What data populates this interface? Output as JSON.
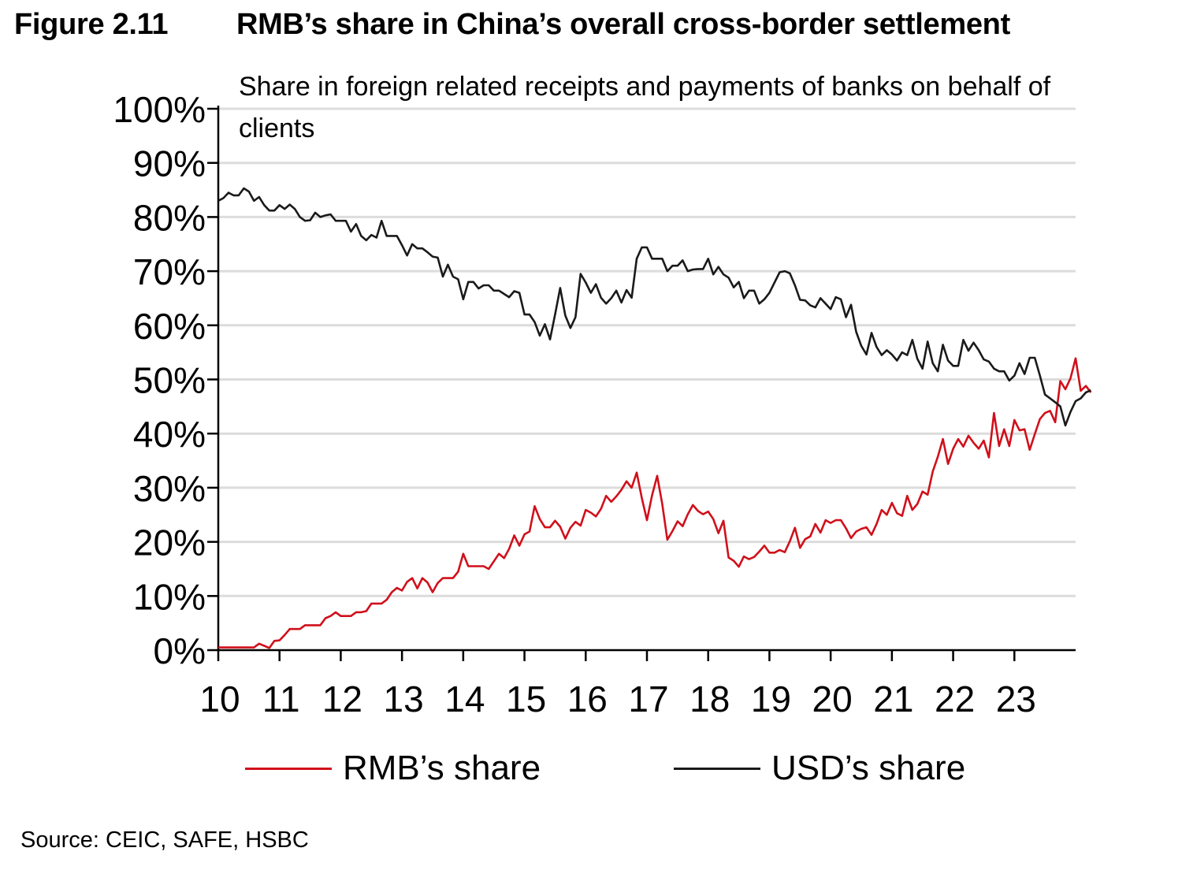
{
  "figure": {
    "number": "Figure 2.11",
    "title": "RMB’s share in China’s overall cross-border settlement",
    "subtitle": "Share in foreign related receipts and payments of banks on behalf of clients",
    "source": "Source: CEIC, SAFE, HSBC"
  },
  "chart_data": {
    "type": "line",
    "title": "RMB’s share in China’s overall cross-border settlement",
    "subtitle": "Share in foreign related receipts and payments of banks on behalf of clients",
    "xlabel": "",
    "ylabel": "",
    "x_start": "2010-01",
    "x_frequency": "monthly",
    "x_range": [
      2010,
      2024
    ],
    "xticks": [
      "10",
      "11",
      "12",
      "13",
      "14",
      "15",
      "16",
      "17",
      "18",
      "19",
      "20",
      "21",
      "22",
      "23"
    ],
    "ylim": [
      0,
      100
    ],
    "yticks": [
      "0%",
      "10%",
      "20%",
      "30%",
      "40%",
      "50%",
      "60%",
      "70%",
      "80%",
      "90%",
      "100%"
    ],
    "grid": "horizontal",
    "legend_position": "bottom",
    "series": [
      {
        "name": "RMB’s share",
        "color": "#d0101b",
        "values": [
          0.5,
          0.5,
          0.5,
          0.5,
          0.5,
          0.5,
          0.5,
          0.5,
          1.2,
          0.8,
          0.4,
          1.7,
          1.8,
          2.8,
          3.9,
          3.9,
          3.9,
          4.6,
          4.6,
          4.6,
          4.6,
          5.9,
          6.3,
          7.0,
          6.3,
          6.3,
          6.3,
          7.0,
          7.0,
          7.2,
          8.6,
          8.6,
          8.6,
          9.3,
          10.7,
          11.5,
          11.0,
          12.6,
          13.3,
          11.4,
          13.3,
          12.5,
          10.7,
          12.4,
          13.3,
          13.3,
          13.3,
          14.5,
          17.8,
          15.5,
          15.5,
          15.5,
          15.5,
          15.0,
          16.4,
          17.8,
          17.0,
          18.7,
          21.2,
          19.3,
          21.4,
          21.9,
          26.6,
          24.2,
          22.7,
          22.7,
          23.9,
          22.8,
          20.6,
          22.6,
          23.7,
          23.0,
          25.9,
          25.4,
          24.7,
          26.1,
          28.5,
          27.4,
          28.4,
          29.6,
          31.2,
          30.0,
          32.8,
          28.1,
          24.0,
          28.6,
          32.2,
          27.0,
          20.4,
          22.0,
          23.8,
          22.9,
          25.1,
          26.8,
          25.7,
          25.1,
          25.6,
          24.2,
          21.6,
          23.9,
          17.1,
          16.5,
          15.4,
          17.3,
          16.8,
          17.2,
          18.2,
          19.3,
          18.0,
          18.0,
          18.5,
          18.1,
          20.1,
          22.6,
          18.9,
          20.5,
          21.0,
          23.3,
          21.7,
          24.0,
          23.5,
          24.0,
          24.0,
          22.5,
          20.7,
          21.9,
          22.4,
          22.7,
          21.3,
          23.3,
          25.9,
          25.0,
          27.2,
          25.3,
          24.8,
          28.5,
          25.9,
          27.0,
          29.3,
          28.7,
          33.0,
          35.7,
          39.0,
          34.4,
          37.2,
          39.0,
          37.6,
          39.6,
          38.3,
          37.2,
          38.7,
          35.6,
          43.8,
          37.7,
          40.8,
          37.7,
          42.5,
          40.6,
          40.8,
          37.0,
          39.9,
          42.7,
          43.8,
          44.2,
          42.1,
          49.7,
          48.2,
          50.2,
          53.9,
          47.9,
          48.8,
          47.6
        ]
      },
      {
        "name": "USD’s share",
        "color": "#1a1a1a",
        "values": [
          83.0,
          83.5,
          84.5,
          84.0,
          84.0,
          85.3,
          84.7,
          83.0,
          83.7,
          82.2,
          81.2,
          81.2,
          82.2,
          81.5,
          82.3,
          81.5,
          80.0,
          79.3,
          79.4,
          80.8,
          80.0,
          80.3,
          80.5,
          79.3,
          79.3,
          79.3,
          77.3,
          78.7,
          76.5,
          75.7,
          76.7,
          76.2,
          79.3,
          76.5,
          76.5,
          76.5,
          74.8,
          72.9,
          75.0,
          74.2,
          74.2,
          73.5,
          72.7,
          72.5,
          69.0,
          71.2,
          69.0,
          68.5,
          64.8,
          68.0,
          68.0,
          66.8,
          67.4,
          67.4,
          66.4,
          66.4,
          65.8,
          65.2,
          66.3,
          66.0,
          62.0,
          62.0,
          60.6,
          58.1,
          60.2,
          57.4,
          62.0,
          66.9,
          61.8,
          59.5,
          61.5,
          69.5,
          67.9,
          66.0,
          67.6,
          65.1,
          64.0,
          65.0,
          66.4,
          64.2,
          66.5,
          65.1,
          72.3,
          74.4,
          74.4,
          72.3,
          72.3,
          72.3,
          70.0,
          71.0,
          71.0,
          72.0,
          70.0,
          70.3,
          70.4,
          70.4,
          72.3,
          69.4,
          70.8,
          69.4,
          68.8,
          67.0,
          68.0,
          65.0,
          66.4,
          66.4,
          64.0,
          64.8,
          66.0,
          67.9,
          69.8,
          70.0,
          69.6,
          67.4,
          64.7,
          64.6,
          63.7,
          63.3,
          65.0,
          64.0,
          63.0,
          65.2,
          64.8,
          61.5,
          63.8,
          58.8,
          56.2,
          54.6,
          58.6,
          56.0,
          54.5,
          55.4,
          54.6,
          53.5,
          55.0,
          54.5,
          57.3,
          53.8,
          52.0,
          57.0,
          53.0,
          51.5,
          56.4,
          53.5,
          52.5,
          52.5,
          57.3,
          55.3,
          56.8,
          55.4,
          53.7,
          53.3,
          52.0,
          51.5,
          51.5,
          49.8,
          50.7,
          53.0,
          51.0,
          54.0,
          54.0,
          50.7,
          47.2,
          46.5,
          45.8,
          45.0,
          41.5,
          44.0,
          46.0,
          46.5,
          47.6,
          48.0
        ]
      }
    ]
  },
  "legend": {
    "items": [
      {
        "label": "RMB’s share",
        "color": "#d0101b"
      },
      {
        "label": "USD’s share",
        "color": "#1a1a1a"
      }
    ]
  }
}
